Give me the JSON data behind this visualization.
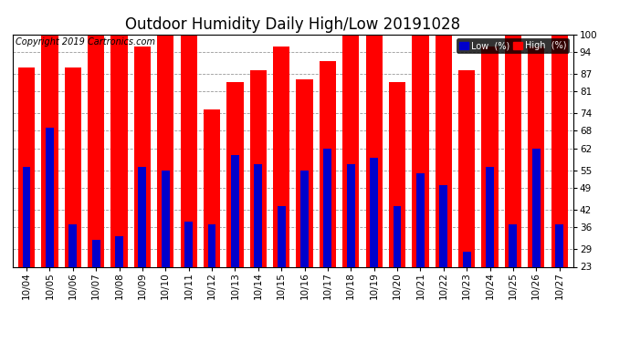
{
  "title": "Outdoor Humidity Daily High/Low 20191028",
  "copyright": "Copyright 2019 Cartronics.com",
  "categories": [
    "10/04",
    "10/05",
    "10/06",
    "10/07",
    "10/08",
    "10/09",
    "10/10",
    "10/11",
    "10/12",
    "10/13",
    "10/14",
    "10/15",
    "10/16",
    "10/17",
    "10/18",
    "10/19",
    "10/20",
    "10/21",
    "10/22",
    "10/23",
    "10/24",
    "10/25",
    "10/26",
    "10/27"
  ],
  "high_values": [
    89,
    100,
    89,
    100,
    100,
    96,
    100,
    100,
    75,
    84,
    88,
    96,
    85,
    91,
    100,
    100,
    84,
    100,
    100,
    88,
    96,
    100,
    96,
    100
  ],
  "low_values": [
    56,
    69,
    37,
    32,
    33,
    56,
    55,
    38,
    37,
    60,
    57,
    43,
    55,
    62,
    57,
    59,
    43,
    54,
    50,
    28,
    56,
    37,
    62,
    37
  ],
  "high_color": "#ff0000",
  "low_color": "#0000cc",
  "background_color": "#ffffff",
  "grid_color": "#999999",
  "ylim_min": 23,
  "ylim_max": 100,
  "yticks": [
    23,
    29,
    36,
    42,
    49,
    55,
    62,
    68,
    74,
    81,
    87,
    94,
    100
  ],
  "legend_low_label": "Low  (%)",
  "legend_high_label": "High  (%)",
  "title_fontsize": 12,
  "tick_fontsize": 7.5,
  "copyright_fontsize": 7
}
